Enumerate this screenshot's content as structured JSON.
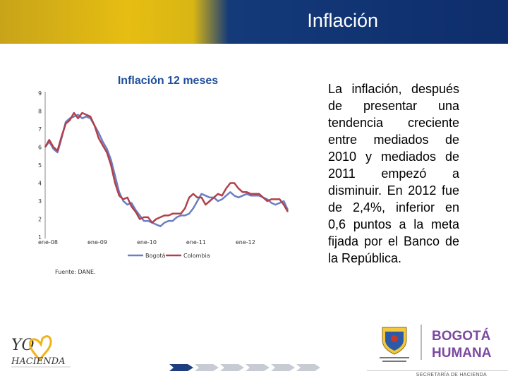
{
  "header": {
    "title": "Inflación"
  },
  "body_text": "La inflación, después de presentar una tendencia creciente entre mediados de 2010 y mediados de 2011 empezó a disminuir. En 2012 fue de 2,4%, inferior en 0,6 puntos a la meta fijada por el Banco de la República.",
  "source": "Fuente: DANE.",
  "logos": {
    "yo_hacienda": "YO HACIENDA",
    "alcaldia": "ALCALDÍA MAYOR DE BOGOTÁ D.C.",
    "bogota_line1": "BOGOTÁ",
    "bogota_line2": "HUMANA"
  },
  "footer": "SECRETARÍA DE HACIENDA",
  "colors": {
    "bogota": "#6a7fc4",
    "colombia": "#b2404a",
    "banner_gold": "#e6bd12",
    "banner_blue": "#0e2d6b"
  },
  "chart_data": {
    "type": "line",
    "title": "Inflación 12 meses",
    "ylim": [
      1,
      9
    ],
    "yticks": [
      1,
      2,
      3,
      4,
      5,
      6,
      7,
      8,
      9
    ],
    "xtick_labels": [
      "ene-08",
      "ene-09",
      "ene-10",
      "ene-11",
      "ene-12"
    ],
    "legend": "bottom",
    "grid": false,
    "x": [
      "2008-01",
      "2008-02",
      "2008-03",
      "2008-04",
      "2008-05",
      "2008-06",
      "2008-07",
      "2008-08",
      "2008-09",
      "2008-10",
      "2008-11",
      "2008-12",
      "2009-01",
      "2009-02",
      "2009-03",
      "2009-04",
      "2009-05",
      "2009-06",
      "2009-07",
      "2009-08",
      "2009-09",
      "2009-10",
      "2009-11",
      "2009-12",
      "2010-01",
      "2010-02",
      "2010-03",
      "2010-04",
      "2010-05",
      "2010-06",
      "2010-07",
      "2010-08",
      "2010-09",
      "2010-10",
      "2010-11",
      "2010-12",
      "2011-01",
      "2011-02",
      "2011-03",
      "2011-04",
      "2011-05",
      "2011-06",
      "2011-07",
      "2011-08",
      "2011-09",
      "2011-10",
      "2011-11",
      "2011-12",
      "2012-01",
      "2012-02",
      "2012-03",
      "2012-04",
      "2012-05",
      "2012-06",
      "2012-07",
      "2012-08",
      "2012-09",
      "2012-10",
      "2012-11",
      "2012-12"
    ],
    "series": [
      {
        "name": "Bogotá",
        "values": [
          6.0,
          6.3,
          5.9,
          5.7,
          6.5,
          7.4,
          7.6,
          7.7,
          7.8,
          7.6,
          7.7,
          7.6,
          7.2,
          6.8,
          6.3,
          5.9,
          5.3,
          4.4,
          3.5,
          3.0,
          2.8,
          2.9,
          2.5,
          2.2,
          1.9,
          1.9,
          1.8,
          1.7,
          1.6,
          1.8,
          1.9,
          1.9,
          2.1,
          2.2,
          2.2,
          2.3,
          2.6,
          3.0,
          3.4,
          3.3,
          3.2,
          3.2,
          3.0,
          3.1,
          3.3,
          3.5,
          3.3,
          3.2,
          3.3,
          3.4,
          3.3,
          3.3,
          3.3,
          3.2,
          3.1,
          2.9,
          2.8,
          2.9,
          3.0,
          2.5
        ]
      },
      {
        "name": "Colombia",
        "values": [
          6.0,
          6.4,
          6.0,
          5.8,
          6.6,
          7.3,
          7.5,
          7.9,
          7.6,
          7.9,
          7.8,
          7.7,
          7.2,
          6.5,
          6.1,
          5.7,
          5.0,
          4.0,
          3.3,
          3.1,
          3.2,
          2.7,
          2.4,
          2.0,
          2.1,
          2.1,
          1.8,
          2.0,
          2.1,
          2.2,
          2.2,
          2.3,
          2.3,
          2.3,
          2.6,
          3.2,
          3.4,
          3.2,
          3.2,
          2.8,
          3.0,
          3.2,
          3.4,
          3.3,
          3.7,
          4.0,
          4.0,
          3.7,
          3.5,
          3.5,
          3.4,
          3.4,
          3.4,
          3.2,
          3.0,
          3.1,
          3.1,
          3.1,
          2.8,
          2.4
        ]
      }
    ]
  }
}
